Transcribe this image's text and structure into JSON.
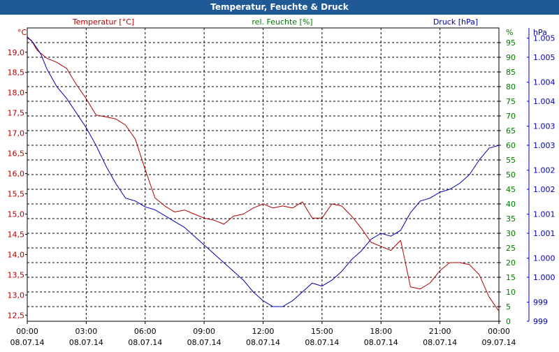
{
  "window": {
    "title": "Temperatur, Feuchte & Druck"
  },
  "colors": {
    "temperature": "#b00000",
    "humidity": "#007a00",
    "pressure": "#0000b0",
    "grid": "#000000",
    "titlebar": "#1f5a96"
  },
  "chart_data": {
    "type": "line",
    "title": "Temperatur, Feuchte & Druck",
    "x_ticks": [
      {
        "time": "00:00",
        "date": "08.07.14"
      },
      {
        "time": "03:00",
        "date": "08.07.14"
      },
      {
        "time": "06:00",
        "date": "08.07.14"
      },
      {
        "time": "09:00",
        "date": "08.07.14"
      },
      {
        "time": "12:00",
        "date": "08.07.14"
      },
      {
        "time": "15:00",
        "date": "08.07.14"
      },
      {
        "time": "18:00",
        "date": "08.07.14"
      },
      {
        "time": "21:00",
        "date": "08.07.14"
      },
      {
        "time": "00:00",
        "date": "09.07.14"
      }
    ],
    "xlim_hours": [
      0,
      24
    ],
    "axes": {
      "temperature": {
        "label": "Temperatur [°C]",
        "unit": "°C",
        "ylim": [
          12.35,
          19.6
        ],
        "ticks": [
          "12,5",
          "13,0",
          "13,5",
          "14,0",
          "14,5",
          "15,0",
          "15,5",
          "16,0",
          "16,5",
          "17,0",
          "17,5",
          "18,0",
          "18,5",
          "19,0"
        ],
        "tick_values": [
          12.5,
          13.0,
          13.5,
          14.0,
          14.5,
          15.0,
          15.5,
          16.0,
          16.5,
          17.0,
          17.5,
          18.0,
          18.5,
          19.0
        ]
      },
      "humidity": {
        "label": "rel. Feuchte [%]",
        "unit": "%",
        "ylim": [
          0,
          100
        ],
        "ticks": [
          "0",
          "5",
          "10",
          "15",
          "20",
          "25",
          "30",
          "35",
          "40",
          "45",
          "50",
          "55",
          "60",
          "65",
          "70",
          "75",
          "80",
          "85",
          "90",
          "95"
        ],
        "tick_values": [
          0,
          5,
          10,
          15,
          20,
          25,
          30,
          35,
          40,
          45,
          50,
          55,
          60,
          65,
          70,
          75,
          80,
          85,
          90,
          95
        ]
      },
      "pressure": {
        "label": "Druck [hPa]",
        "unit": "hPa",
        "ylim": [
          0,
          100
        ],
        "ticks": [
          "999",
          "999",
          "1.000",
          "1.000",
          "1.001",
          "1.001",
          "1.002",
          "1.002",
          "1.003",
          "1.003",
          "1.004",
          "1.004",
          "1.005",
          "1.005"
        ],
        "tick_values": [
          0,
          6.5,
          15,
          21.5,
          30,
          36.5,
          45,
          51.5,
          60,
          66.5,
          75,
          81.5,
          90,
          96.5
        ]
      }
    },
    "series": [
      {
        "name": "Temperatur",
        "axis": "temperature",
        "x": [
          0,
          0.2,
          0.5,
          1,
          1.5,
          2,
          2.5,
          3,
          3.5,
          4,
          4.5,
          5,
          5.5,
          6,
          6.5,
          7,
          7.5,
          8,
          8.5,
          9,
          9.5,
          10,
          10.5,
          11,
          11.5,
          12,
          12.5,
          13,
          13.5,
          14,
          14.5,
          15,
          15.5,
          16,
          16.5,
          17,
          17.5,
          18,
          18.5,
          19,
          19.2,
          19.5,
          20,
          20.5,
          21,
          21.5,
          22,
          22.5,
          23,
          23.5,
          24
        ],
        "values": [
          19.35,
          19.3,
          19.05,
          18.85,
          18.75,
          18.6,
          18.2,
          17.85,
          17.45,
          17.4,
          17.35,
          17.2,
          16.85,
          16.1,
          15.4,
          15.2,
          15.05,
          15.1,
          15.0,
          14.9,
          14.85,
          14.75,
          14.95,
          15.0,
          15.15,
          15.25,
          15.15,
          15.2,
          15.15,
          15.3,
          14.9,
          14.9,
          15.25,
          15.2,
          14.95,
          14.65,
          14.3,
          14.2,
          14.1,
          14.35,
          13.9,
          13.2,
          13.15,
          13.3,
          13.6,
          13.8,
          13.8,
          13.75,
          13.5,
          12.95,
          12.6
        ]
      },
      {
        "name": "rel. Feuchte",
        "axis": "humidity",
        "x": [],
        "values": []
      },
      {
        "name": "Druck",
        "axis": "pressure",
        "x": [
          0,
          0.3,
          0.7,
          1,
          1.5,
          2,
          2.5,
          3,
          3.5,
          4,
          4.5,
          5,
          5.5,
          6,
          6.5,
          7,
          7.5,
          8,
          8.5,
          9,
          9.5,
          10,
          10.5,
          11,
          11.5,
          12,
          12.5,
          13,
          13.5,
          14,
          14.5,
          15,
          15.5,
          16,
          16.5,
          17,
          17.5,
          18,
          18.5,
          19,
          19.5,
          20,
          20.5,
          21,
          21.5,
          22,
          22.5,
          23,
          23.5,
          24
        ],
        "values": [
          97,
          95,
          91,
          86,
          80,
          76,
          71,
          66,
          60,
          53,
          47,
          42,
          41,
          39,
          38,
          36,
          34,
          32,
          29,
          26,
          23,
          20,
          17,
          14,
          10,
          7,
          5,
          5,
          7,
          10,
          13,
          12,
          14,
          17,
          21,
          24,
          28,
          30,
          29,
          31,
          37,
          41,
          42,
          44,
          45,
          47,
          50,
          55,
          59,
          60
        ]
      }
    ]
  }
}
